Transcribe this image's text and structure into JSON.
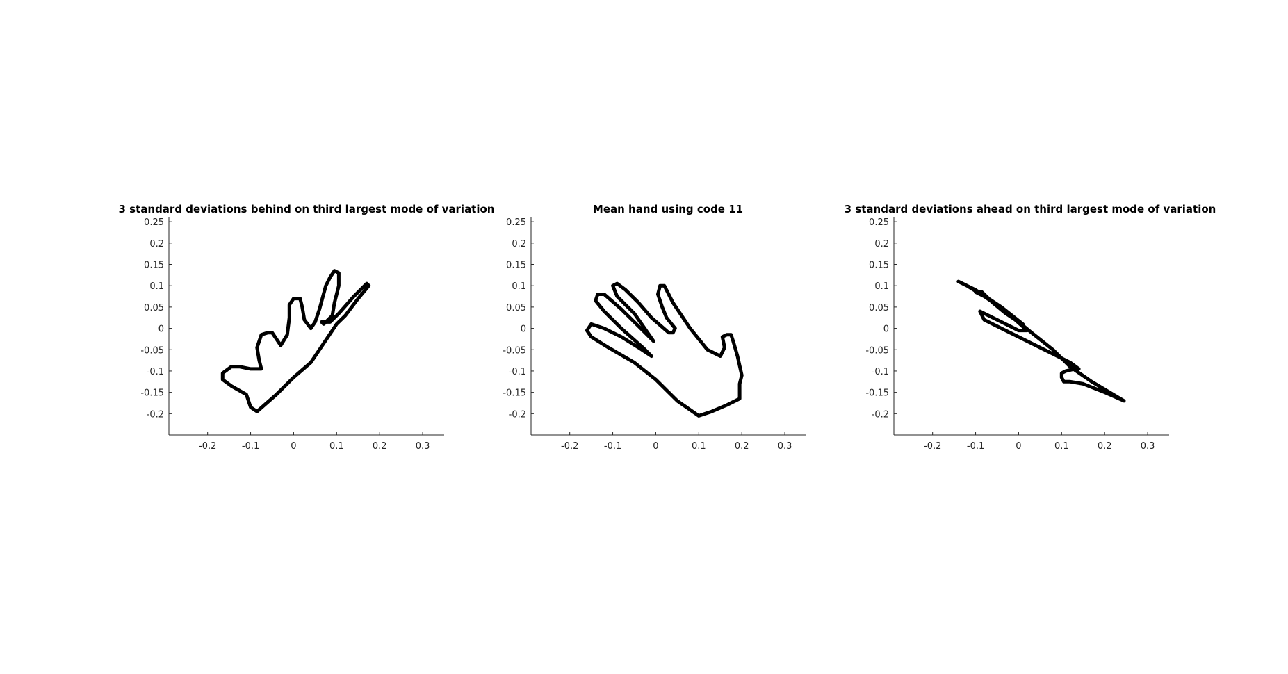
{
  "chart_data": [
    {
      "type": "line",
      "title": "3 standard deviations behind on third largest mode of variation",
      "xlabel": "",
      "ylabel": "",
      "xlim": [
        -0.29,
        0.35
      ],
      "ylim": [
        -0.25,
        0.26
      ],
      "xticks": [
        "-0.2",
        "-0.1",
        "0",
        "0.1",
        "0.2",
        "0.3"
      ],
      "yticks": [
        "0.25",
        "0.2",
        "0.15",
        "0.1",
        "0.05",
        "0",
        "-0.05",
        "-0.1",
        "-0.15",
        "-0.2"
      ],
      "grid": false,
      "series": [
        {
          "color": "#000000",
          "x": [
            -0.085,
            -0.1,
            -0.11,
            -0.145,
            -0.165,
            -0.165,
            -0.145,
            -0.125,
            -0.1,
            -0.075,
            -0.08,
            -0.085,
            -0.075,
            -0.06,
            -0.05,
            -0.04,
            -0.03,
            -0.015,
            -0.01,
            -0.01,
            0.0,
            0.015,
            0.02,
            0.025,
            0.04,
            0.05,
            0.06,
            0.075,
            0.085,
            0.095,
            0.105,
            0.105,
            0.1,
            0.095,
            0.09,
            0.07,
            0.065,
            0.085,
            0.105,
            0.14,
            0.17,
            0.175,
            0.15,
            0.12,
            0.1,
            0.07,
            0.04,
            0.0,
            -0.04,
            -0.085
          ],
          "y": [
            -0.195,
            -0.185,
            -0.155,
            -0.135,
            -0.12,
            -0.105,
            -0.09,
            -0.09,
            -0.095,
            -0.095,
            -0.075,
            -0.045,
            -0.015,
            -0.01,
            -0.01,
            -0.025,
            -0.04,
            -0.015,
            0.025,
            0.055,
            0.07,
            0.07,
            0.05,
            0.02,
            0.0,
            0.015,
            0.045,
            0.1,
            0.12,
            0.135,
            0.13,
            0.1,
            0.08,
            0.06,
            0.03,
            0.01,
            0.015,
            0.015,
            0.035,
            0.075,
            0.105,
            0.1,
            0.07,
            0.03,
            0.01,
            -0.035,
            -0.08,
            -0.115,
            -0.155,
            -0.195
          ]
        }
      ]
    },
    {
      "type": "line",
      "title": "Mean hand using code 11",
      "xlabel": "",
      "ylabel": "",
      "xlim": [
        -0.29,
        0.35
      ],
      "ylim": [
        -0.25,
        0.26
      ],
      "xticks": [
        "-0.2",
        "-0.1",
        "0",
        "0.1",
        "0.2",
        "0.3"
      ],
      "yticks": [
        "0.25",
        "0.2",
        "0.15",
        "0.1",
        "0.05",
        "0",
        "-0.05",
        "-0.1",
        "-0.15",
        "-0.2"
      ],
      "grid": false,
      "series": [
        {
          "color": "#000000",
          "x": [
            0.1,
            0.13,
            0.165,
            0.195,
            0.195,
            0.2,
            0.19,
            0.18,
            0.175,
            0.165,
            0.155,
            0.16,
            0.15,
            0.12,
            0.1,
            0.08,
            0.06,
            0.04,
            0.02,
            0.01,
            0.005,
            0.015,
            0.025,
            0.045,
            0.04,
            0.03,
            -0.01,
            -0.04,
            -0.07,
            -0.09,
            -0.1,
            -0.09,
            -0.05,
            -0.005,
            -0.04,
            -0.08,
            -0.12,
            -0.135,
            -0.14,
            -0.12,
            -0.08,
            -0.03,
            -0.01,
            -0.04,
            -0.08,
            -0.12,
            -0.15,
            -0.16,
            -0.15,
            -0.11,
            -0.05,
            0.0,
            0.05,
            0.1
          ],
          "y": [
            -0.205,
            -0.195,
            -0.18,
            -0.165,
            -0.13,
            -0.11,
            -0.065,
            -0.03,
            -0.015,
            -0.015,
            -0.02,
            -0.045,
            -0.065,
            -0.05,
            -0.025,
            0.0,
            0.03,
            0.06,
            0.1,
            0.1,
            0.08,
            0.05,
            0.025,
            0.0,
            -0.01,
            -0.01,
            0.025,
            0.06,
            0.09,
            0.105,
            0.1,
            0.075,
            0.035,
            -0.03,
            0.005,
            0.045,
            0.08,
            0.08,
            0.065,
            0.04,
            0.0,
            -0.045,
            -0.065,
            -0.045,
            -0.02,
            0.0,
            0.01,
            -0.005,
            -0.02,
            -0.045,
            -0.08,
            -0.12,
            -0.17,
            -0.205
          ]
        }
      ]
    },
    {
      "type": "line",
      "title": "3 standard deviations ahead on third largest mode of variation",
      "xlabel": "",
      "ylabel": "",
      "xlim": [
        -0.29,
        0.35
      ],
      "ylim": [
        -0.25,
        0.26
      ],
      "xticks": [
        "-0.2",
        "-0.1",
        "0",
        "0.1",
        "0.2",
        "0.3"
      ],
      "yticks": [
        "0.25",
        "0.2",
        "0.15",
        "0.1",
        "0.05",
        "0",
        "-0.05",
        "-0.1",
        "-0.15",
        "-0.2"
      ],
      "grid": false,
      "series": [
        {
          "color": "#000000",
          "x": [
            0.245,
            0.2,
            0.15,
            0.12,
            0.105,
            0.1,
            0.1,
            0.11,
            0.13,
            0.14,
            0.12,
            0.08,
            0.02,
            -0.04,
            -0.08,
            -0.09,
            -0.05,
            0.0,
            0.02,
            -0.03,
            -0.08,
            -0.1,
            -0.085,
            -0.06,
            -0.03,
            0.0,
            0.01,
            -0.04,
            -0.1,
            -0.13,
            -0.14,
            -0.12,
            -0.08,
            -0.03,
            0.03,
            0.08,
            0.12,
            0.17,
            0.245
          ],
          "y": [
            -0.17,
            -0.15,
            -0.13,
            -0.125,
            -0.125,
            -0.115,
            -0.105,
            -0.1,
            -0.095,
            -0.095,
            -0.08,
            -0.06,
            -0.03,
            0.0,
            0.02,
            0.04,
            0.02,
            -0.005,
            -0.005,
            0.04,
            0.075,
            0.085,
            0.085,
            0.06,
            0.035,
            0.015,
            0.01,
            0.05,
            0.09,
            0.105,
            0.11,
            0.1,
            0.075,
            0.04,
            -0.01,
            -0.05,
            -0.09,
            -0.125,
            -0.17
          ]
        }
      ]
    }
  ]
}
